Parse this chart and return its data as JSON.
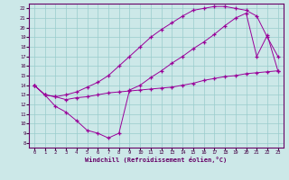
{
  "xlabel": "Windchill (Refroidissement éolien,°C)",
  "bg_color": "#cce8e8",
  "line_color": "#990099",
  "grid_color": "#99cccc",
  "spine_color": "#660066",
  "tick_color": "#440044",
  "xlim": [
    -0.5,
    23.5
  ],
  "ylim": [
    7.5,
    22.5
  ],
  "xticks": [
    0,
    1,
    2,
    3,
    4,
    5,
    6,
    7,
    8,
    9,
    10,
    11,
    12,
    13,
    14,
    15,
    16,
    17,
    18,
    19,
    20,
    21,
    22,
    23
  ],
  "yticks": [
    8,
    9,
    10,
    11,
    12,
    13,
    14,
    15,
    16,
    17,
    18,
    19,
    20,
    21,
    22
  ],
  "line1_x": [
    0,
    1,
    2,
    3,
    4,
    5,
    6,
    7,
    8,
    9,
    10,
    11,
    12,
    13,
    14,
    15,
    16,
    17,
    18,
    19,
    20,
    21,
    22,
    23
  ],
  "line1_y": [
    14.0,
    13.0,
    12.8,
    12.5,
    12.7,
    12.8,
    13.0,
    13.2,
    13.3,
    13.4,
    13.5,
    13.6,
    13.7,
    13.8,
    14.0,
    14.2,
    14.5,
    14.7,
    14.9,
    15.0,
    15.2,
    15.3,
    15.4,
    15.5
  ],
  "line2_x": [
    0,
    1,
    2,
    3,
    4,
    5,
    6,
    7,
    8,
    9,
    10,
    11,
    12,
    13,
    14,
    15,
    16,
    17,
    18,
    19,
    20,
    21,
    22,
    23
  ],
  "line2_y": [
    14.0,
    13.0,
    11.8,
    11.2,
    10.3,
    9.3,
    9.0,
    8.5,
    9.0,
    13.5,
    14.0,
    14.8,
    15.5,
    16.3,
    17.0,
    17.8,
    18.5,
    19.3,
    20.2,
    21.0,
    21.5,
    17.0,
    19.2,
    15.5
  ],
  "line3_x": [
    0,
    1,
    2,
    3,
    4,
    5,
    6,
    7,
    8,
    9,
    10,
    11,
    12,
    13,
    14,
    15,
    16,
    17,
    18,
    19,
    20,
    21,
    22,
    23
  ],
  "line3_y": [
    14.0,
    13.0,
    12.8,
    13.0,
    13.3,
    13.8,
    14.3,
    15.0,
    16.0,
    17.0,
    18.0,
    19.0,
    19.8,
    20.5,
    21.2,
    21.8,
    22.0,
    22.2,
    22.2,
    22.0,
    21.8,
    21.2,
    19.0,
    17.0
  ]
}
